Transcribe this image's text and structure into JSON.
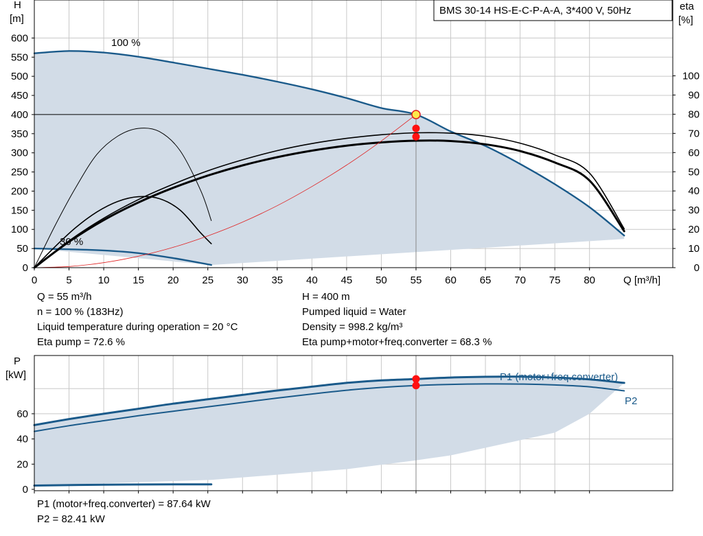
{
  "chart_data": [
    {
      "type": "line",
      "title": "BMS 30-14 HS-E-C-P-A-A, 3*400 V, 50Hz",
      "ylabel": "H",
      "yunit": "[m]",
      "y2label": "eta",
      "y2unit": "[%]",
      "xlabel": "Q [m³/h]",
      "xlim": [
        0,
        92
      ],
      "ylim": [
        0,
        620
      ],
      "y2lim": [
        0,
        100
      ],
      "x_ticks": [
        0,
        5,
        10,
        15,
        20,
        25,
        30,
        35,
        40,
        45,
        50,
        55,
        60,
        65,
        70,
        75,
        80
      ],
      "y_ticks": [
        0,
        50,
        100,
        150,
        200,
        250,
        300,
        350,
        400,
        450,
        500,
        550,
        600
      ],
      "y2_ticks": [
        0,
        10,
        20,
        30,
        40,
        50,
        60,
        70,
        80,
        90,
        100
      ],
      "grid": true,
      "annotations": [
        "100 %",
        "30 %"
      ],
      "duty_point": {
        "Q": 55,
        "H": 400
      },
      "series": [
        {
          "name": "100 %",
          "role": "head",
          "color": "#1a5a8a",
          "x": [
            0,
            5,
            10,
            15,
            20,
            25,
            30,
            35,
            40,
            45,
            50,
            55,
            60,
            65,
            70,
            75,
            80,
            85
          ],
          "y": [
            560,
            566,
            562,
            551,
            536,
            520,
            504,
            486,
            466,
            443,
            417,
            400,
            356,
            318,
            271,
            218,
            158,
            84
          ]
        },
        {
          "role": "head",
          "color": "#1a5a8a",
          "x": [
            0,
            5,
            10,
            15,
            20,
            25.5
          ],
          "y": [
            50,
            48,
            45,
            38,
            25,
            7
          ]
        },
        {
          "role": "head",
          "color": "#555555",
          "x": [
            0,
            5,
            10,
            16,
            20,
            25.5
          ],
          "y": [
            0,
            0,
            0,
            0,
            0,
            0
          ]
        },
        {
          "role": "efficiency",
          "color": "#000000",
          "width": 3,
          "x": [
            0,
            5,
            10,
            15,
            20,
            25,
            30,
            35,
            40,
            45,
            50,
            55,
            60,
            65,
            70,
            75,
            80,
            85
          ],
          "y": [
            0,
            13.5,
            24.8,
            34,
            41.6,
            48,
            53.3,
            57.6,
            61,
            63.6,
            65.3,
            66.2,
            66,
            64.3,
            60.8,
            54.8,
            45.4,
            19
          ]
        },
        {
          "role": "efficiency",
          "color": "#000000",
          "width": 1.6,
          "x": [
            0,
            5,
            10,
            15,
            20,
            25,
            30,
            35,
            40,
            45,
            50,
            55,
            60,
            65,
            70,
            75,
            80,
            85
          ],
          "y": [
            0,
            14,
            25.8,
            35.5,
            43.5,
            50.5,
            56.2,
            61.0,
            64.7,
            67.4,
            69.3,
            70.3,
            70.1,
            68.5,
            64.9,
            58.8,
            49.3,
            20.3
          ]
        },
        {
          "role": "efficiency",
          "color": "#000000",
          "width": 1.6,
          "x": [
            0,
            3,
            6,
            9,
            12,
            15,
            18,
            21,
            24,
            25.5
          ],
          "y": [
            0,
            11,
            21,
            29,
            34.5,
            37,
            36,
            30,
            18,
            12.5
          ]
        },
        {
          "role": "efficiency",
          "color": "#000000",
          "width": 1,
          "x": [
            0,
            3,
            6,
            9,
            12,
            15,
            18,
            21,
            24,
            25.5
          ],
          "y": [
            0,
            22,
            42,
            59,
            68.5,
            72.6,
            71,
            61,
            40,
            24.5
          ]
        },
        {
          "role": "system",
          "color": "#e02020",
          "x": [
            0,
            5,
            10,
            15,
            20,
            25,
            30,
            35,
            40,
            45,
            50,
            55
          ],
          "y": [
            0,
            3,
            13,
            30,
            53,
            83,
            119,
            162,
            212,
            268,
            331,
            400
          ]
        }
      ],
      "markers": [
        {
          "x": 55,
          "y": 400,
          "axis": "left",
          "style": "yellow"
        },
        {
          "x": 55,
          "y": 72.6,
          "axis": "right",
          "style": "red"
        },
        {
          "x": 55,
          "y": 68.3,
          "axis": "right",
          "style": "red"
        }
      ]
    },
    {
      "type": "line",
      "ylabel": "P",
      "yunit": "[kW]",
      "xlim": [
        0,
        92
      ],
      "ylim": [
        0,
        100
      ],
      "y_ticks": [
        0,
        20,
        40,
        60
      ],
      "grid": true,
      "series": [
        {
          "name": "P1 (motor+freq.converter)",
          "color": "#1a5a8a",
          "width": 3,
          "x": [
            0,
            5,
            10,
            15,
            20,
            25,
            30,
            35,
            40,
            45,
            50,
            55,
            60,
            65,
            70,
            75,
            80,
            85
          ],
          "y": [
            51,
            55.8,
            60,
            64,
            68,
            71.5,
            75,
            78.5,
            81.5,
            84.5,
            86.5,
            87.64,
            88.8,
            89.4,
            89.5,
            88.8,
            87.3,
            84.5
          ]
        },
        {
          "name": "P2",
          "color": "#1a5a8a",
          "width": 2,
          "x": [
            0,
            5,
            10,
            15,
            20,
            25,
            30,
            35,
            40,
            45,
            50,
            55,
            60,
            65,
            70,
            75,
            80,
            85
          ],
          "y": [
            46,
            50.5,
            54.5,
            58.4,
            62,
            65.5,
            69,
            72.5,
            75.7,
            78.7,
            80.9,
            82.41,
            83.3,
            83.7,
            83.6,
            82.9,
            81.4,
            78.2
          ]
        },
        {
          "color": "#1a5a8a",
          "width": 3,
          "x": [
            0,
            10,
            20,
            25.5
          ],
          "y": [
            3,
            3.7,
            4,
            4
          ]
        }
      ],
      "markers": [
        {
          "x": 55,
          "y": 87.64,
          "style": "red"
        },
        {
          "x": 55,
          "y": 82.41,
          "style": "red"
        }
      ]
    }
  ],
  "info": {
    "q_line": "Q = 55 m³/h",
    "n_line": "n = 100 % (183Hz)",
    "temp_line": "Liquid temperature during operation = 20 °C",
    "eta_pump_line": "Eta pump = 72.6 %",
    "h_line": "H = 400 m",
    "liquid_line": "Pumped liquid = Water",
    "density_line": "Density = 998.2 kg/m³",
    "eta_total_line": "Eta pump+motor+freq.converter = 68.3 %",
    "p1_line": "P1 (motor+freq.converter) = 87.64 kW",
    "p2_line": "P2 = 82.41 kW"
  },
  "colors": {
    "curve_blue": "#1a5a8a",
    "area_fill": "#d2dce7",
    "system_red": "#e02020",
    "duty_yellow": "#ffe84a",
    "marker_red": "#ff1010",
    "grid": "#c8c8c8"
  }
}
